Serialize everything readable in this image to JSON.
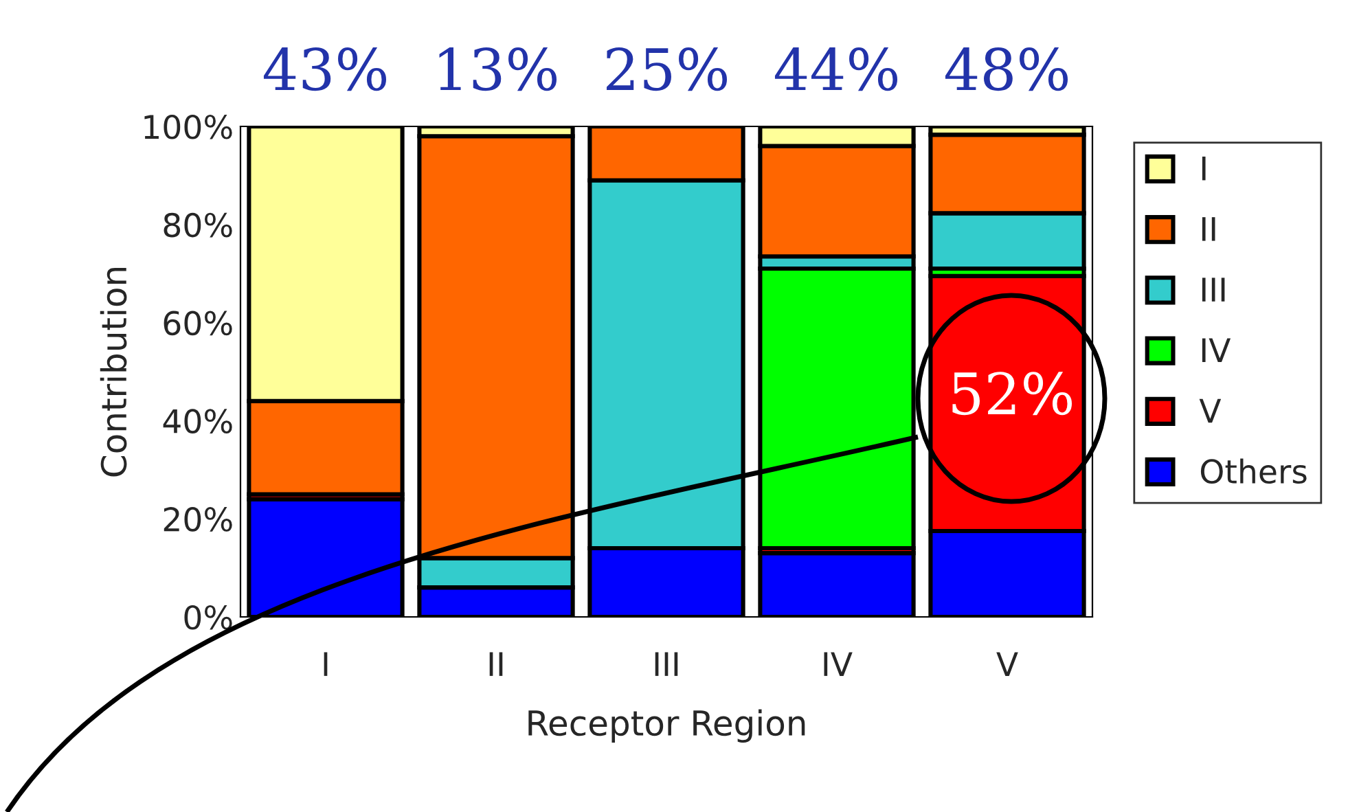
{
  "chart_data": {
    "type": "bar",
    "stacked": true,
    "xlabel": "Receptor Region",
    "ylabel": "Contribution",
    "categories": [
      "I",
      "II",
      "III",
      "IV",
      "V"
    ],
    "series": [
      {
        "name": "Others",
        "color": "#0000ff",
        "values": [
          24,
          6,
          14,
          13,
          17.5
        ]
      },
      {
        "name": "V",
        "color": "#ff0000",
        "values": [
          1,
          0,
          0,
          1,
          52
        ]
      },
      {
        "name": "IV",
        "color": "#00ff00",
        "values": [
          0,
          0,
          0,
          57,
          1.5
        ]
      },
      {
        "name": "III",
        "color": "#33cccc",
        "values": [
          0,
          6,
          75,
          2.5,
          11.3
        ]
      },
      {
        "name": "II",
        "color": "#ff6600",
        "values": [
          19,
          86,
          11,
          22.5,
          16
        ]
      },
      {
        "name": "I",
        "color": "#ffff99",
        "values": [
          56,
          2,
          0,
          4,
          1.7
        ]
      }
    ],
    "ylim": [
      0,
      100
    ],
    "yticks": [
      {
        "value": 0,
        "label": "0%"
      },
      {
        "value": 20,
        "label": "20%"
      },
      {
        "value": 40,
        "label": "40%"
      },
      {
        "value": 60,
        "label": "60%"
      },
      {
        "value": 80,
        "label": "80%"
      },
      {
        "value": 100,
        "label": "100%"
      }
    ],
    "grid": false,
    "legend": "right",
    "annotations": [
      "43%",
      "13%",
      "25%",
      "44%",
      "48%",
      "52%"
    ]
  }
}
